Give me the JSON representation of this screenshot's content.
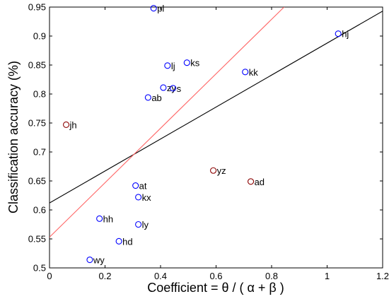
{
  "chart_data": {
    "type": "scatter",
    "title": "",
    "xlabel": "Coefficient = θ / ( α + β )",
    "ylabel": "Classification accuracy (%)",
    "xlim": [
      0,
      1.2
    ],
    "ylim": [
      0.5,
      0.95
    ],
    "xticks": [
      "0",
      "0.2",
      "0.4",
      "0.6",
      "0.8",
      "1",
      "1.2"
    ],
    "yticks": [
      "0.5",
      "0.55",
      "0.6",
      "0.65",
      "0.7",
      "0.75",
      "0.8",
      "0.85",
      "0.9",
      "0.95"
    ],
    "grid": false,
    "points": [
      {
        "label": "pl",
        "x": 0.375,
        "y": 0.948,
        "color": "#0000ff"
      },
      {
        "label": "hj",
        "x": 1.04,
        "y": 0.904,
        "color": "#0000ff"
      },
      {
        "label": "ks",
        "x": 0.495,
        "y": 0.854,
        "color": "#0000ff"
      },
      {
        "label": "lj",
        "x": 0.425,
        "y": 0.849,
        "color": "#0000ff"
      },
      {
        "label": "kk",
        "x": 0.705,
        "y": 0.838,
        "color": "#0000ff"
      },
      {
        "label": "zy",
        "x": 0.41,
        "y": 0.811,
        "color": "#0000ff"
      },
      {
        "label": "s",
        "x": 0.445,
        "y": 0.81,
        "color": "#0000ff"
      },
      {
        "label": "ab",
        "x": 0.355,
        "y": 0.794,
        "color": "#0000ff"
      },
      {
        "label": "jh",
        "x": 0.06,
        "y": 0.747,
        "color": "#8b0000"
      },
      {
        "label": "yz",
        "x": 0.59,
        "y": 0.668,
        "color": "#8b0000"
      },
      {
        "label": "ad",
        "x": 0.725,
        "y": 0.649,
        "color": "#8b0000"
      },
      {
        "label": "at",
        "x": 0.31,
        "y": 0.642,
        "color": "#0000ff"
      },
      {
        "label": "kx",
        "x": 0.32,
        "y": 0.622,
        "color": "#0000ff"
      },
      {
        "label": "hh",
        "x": 0.18,
        "y": 0.585,
        "color": "#0000ff"
      },
      {
        "label": "ly",
        "x": 0.32,
        "y": 0.575,
        "color": "#0000ff"
      },
      {
        "label": "hd",
        "x": 0.25,
        "y": 0.546,
        "color": "#0000ff"
      },
      {
        "label": "wy",
        "x": 0.145,
        "y": 0.514,
        "color": "#0000ff"
      }
    ],
    "lines": [
      {
        "color": "#000000",
        "x": [
          0,
          1.2
        ],
        "y": [
          0.612,
          0.943
        ]
      },
      {
        "color": "#ff6666",
        "x": [
          0,
          0.845
        ],
        "y": [
          0.553,
          0.95
        ]
      }
    ]
  }
}
